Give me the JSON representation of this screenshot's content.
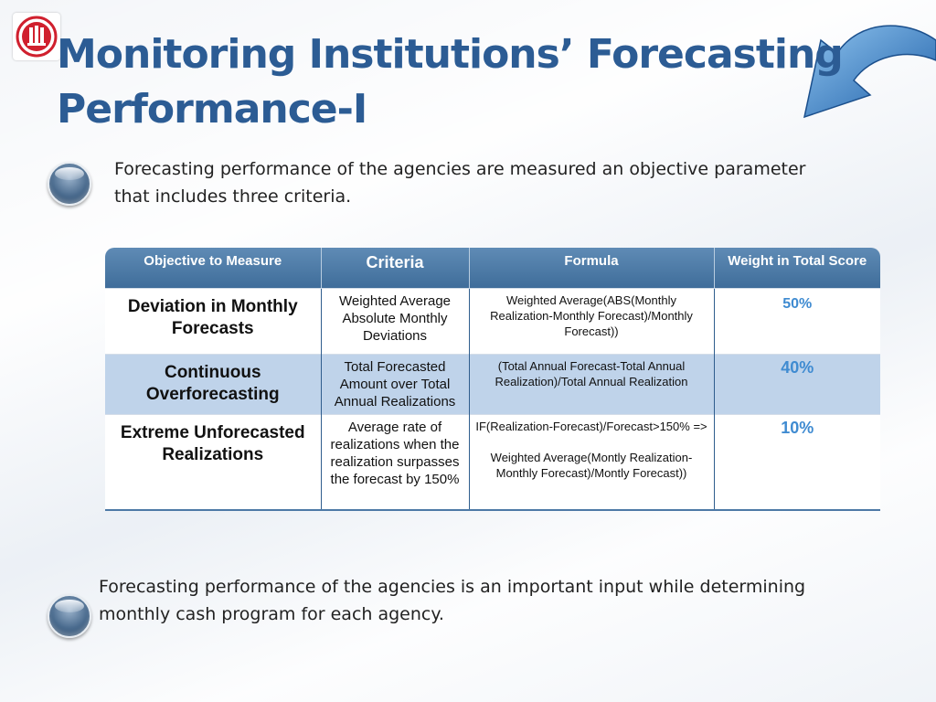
{
  "slide": {
    "title_line1": "Monitoring Institutions’ Forecasting",
    "title_line2": "Performance-I",
    "intro_line1": "Forecasting performance of the agencies are measured an objective parameter",
    "intro_line2": "that includes three criteria.",
    "outro_line1": "Forecasting performance of the agencies is an important input while determining",
    "outro_line2": "monthly cash program for each agency."
  },
  "table": {
    "headers": [
      "Objective to Measure",
      "Criteria",
      "Formula",
      "Weight in Total Score"
    ],
    "rows": [
      {
        "measure": "Deviation in Monthly Forecasts",
        "criteria": "Weighted Average Absolute Monthly Deviations",
        "formula": "Weighted Average(ABS(Monthly Realization-Monthly Forecast)/Monthly Forecast))",
        "formula2": "",
        "weight": "50%"
      },
      {
        "measure": "Continuous Overforecasting",
        "criteria": "Total Forecasted Amount over Total Annual Realizations",
        "formula": "(Total Annual Forecast-Total Annual Realization)/Total Annual Realization",
        "formula2": "",
        "weight": "40%"
      },
      {
        "measure": "Extreme Unforecasted Realizations",
        "criteria": "Average rate of realizations when the realization surpasses the forecast by 150%",
        "formula": "IF(Realization-Forecast)/Forecast>150% =>",
        "formula2": "Weighted Average(Montly Realization-Monthly Forecast)/Montly Forecast))",
        "weight": "10%"
      }
    ]
  },
  "colors": {
    "title": "#2c5c94",
    "header_bg": "#4f7ca8",
    "band_row": "#bfd3ea",
    "weight_text": "#3f8bd1"
  },
  "icons": [
    "logo-icon",
    "swoosh-arrow-icon",
    "bullet-orb-icon"
  ]
}
